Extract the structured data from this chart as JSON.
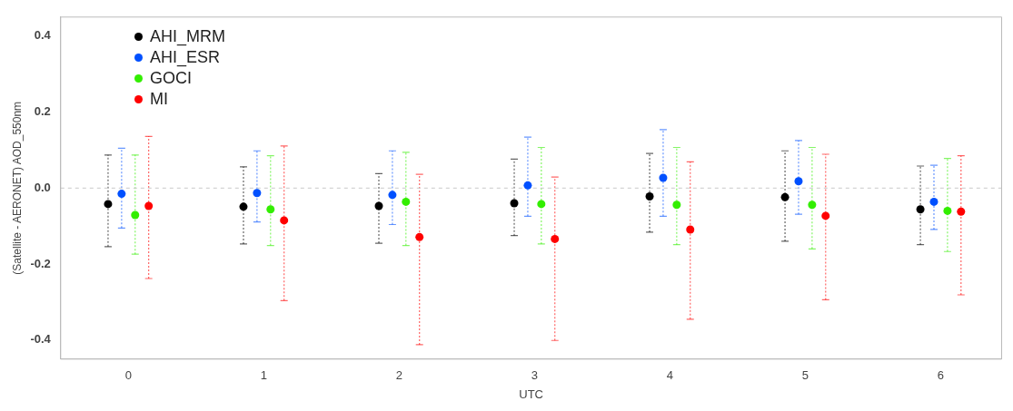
{
  "chart_data": {
    "type": "scatter",
    "xlabel": "UTC",
    "ylabel": "(Satellite - AERONET) AOD_550nm",
    "categories": [
      "0",
      "1",
      "2",
      "3",
      "4",
      "5",
      "6"
    ],
    "ylim": [
      -0.45,
      0.45
    ],
    "yticks": [
      -0.4,
      -0.2,
      {
        "value": 0,
        "label": "0.0"
      },
      0.2,
      0.4
    ],
    "legend": "top left",
    "marker": "circle",
    "ref_lines": [
      {
        "axis": "y",
        "value": 0,
        "color": "#c8c8c8",
        "line_style": "dashed"
      }
    ],
    "series": [
      {
        "name": "AHI_MRM",
        "color": "#000000",
        "values": [
          -0.042,
          -0.049,
          -0.047,
          -0.04,
          -0.022,
          -0.024,
          -0.056
        ],
        "errors": [
          [
            -0.154,
            0.087
          ],
          [
            -0.147,
            0.056
          ],
          [
            -0.145,
            0.038
          ],
          [
            -0.125,
            0.076
          ],
          [
            -0.116,
            0.091
          ],
          [
            -0.14,
            0.098
          ],
          [
            -0.149,
            0.058
          ]
        ]
      },
      {
        "name": "AHI_ESR",
        "color": "#0050ff",
        "values": [
          -0.015,
          -0.013,
          -0.018,
          0.007,
          0.027,
          0.018,
          -0.036
        ],
        "errors": [
          [
            -0.105,
            0.105
          ],
          [
            -0.089,
            0.098
          ],
          [
            -0.096,
            0.098
          ],
          [
            -0.074,
            0.134
          ],
          [
            -0.074,
            0.154
          ],
          [
            -0.069,
            0.125
          ],
          [
            -0.109,
            0.06
          ]
        ]
      },
      {
        "name": "GOCI",
        "color": "#33ee00",
        "values": [
          -0.071,
          -0.056,
          -0.036,
          -0.042,
          -0.044,
          -0.044,
          -0.06
        ],
        "errors": [
          [
            -0.174,
            0.087
          ],
          [
            -0.151,
            0.085
          ],
          [
            -0.151,
            0.094
          ],
          [
            -0.147,
            0.107
          ],
          [
            -0.149,
            0.107
          ],
          [
            -0.16,
            0.107
          ],
          [
            -0.167,
            0.078
          ]
        ]
      },
      {
        "name": "MI",
        "color": "#ff0000",
        "values": [
          -0.047,
          -0.085,
          -0.129,
          -0.134,
          -0.109,
          -0.073,
          -0.062
        ],
        "errors": [
          [
            -0.238,
            0.136
          ],
          [
            -0.296,
            0.111
          ],
          [
            -0.412,
            0.036
          ],
          [
            -0.401,
            0.029
          ],
          [
            -0.345,
            0.069
          ],
          [
            -0.294,
            0.089
          ],
          [
            -0.281,
            0.085
          ]
        ]
      }
    ]
  }
}
